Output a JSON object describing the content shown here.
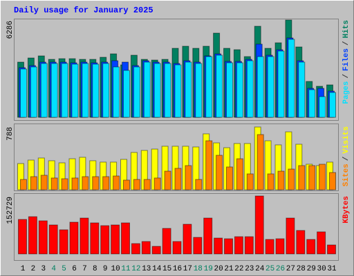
{
  "chart_data": [
    {
      "type": "bar",
      "title": "Daily usage for January 2025",
      "ylim": [
        0,
        6286
      ],
      "yticks": [
        6286
      ],
      "legend_separator": "/",
      "series": [
        {
          "name": "Hits",
          "color": "#008060",
          "values": [
            3566,
            3834,
            3968,
            3745,
            3789,
            3789,
            3745,
            3745,
            3879,
            4101,
            3388,
            4012,
            3745,
            3700,
            3745,
            4458,
            4592,
            4458,
            4592,
            5439,
            4458,
            4369,
            3923,
            5884,
            4458,
            4815,
            6286,
            4547,
            2318,
            2006,
            2095
          ]
        },
        {
          "name": "Files",
          "color": "#0040ff",
          "values": [
            3210,
            3343,
            3566,
            3566,
            3566,
            3522,
            3566,
            3522,
            3566,
            3656,
            3566,
            3343,
            3656,
            3566,
            3566,
            3477,
            3656,
            3566,
            3968,
            4101,
            3611,
            3611,
            3745,
            4726,
            4012,
            4369,
            5127,
            3656,
            1872,
            1872,
            1694
          ]
        },
        {
          "name": "Pages",
          "color": "#00e0ff",
          "values": [
            3121,
            3254,
            3477,
            3477,
            3477,
            3433,
            3477,
            3433,
            3477,
            3254,
            3031,
            3254,
            3566,
            3477,
            3477,
            3388,
            3566,
            3477,
            3923,
            4012,
            3522,
            3522,
            3656,
            3923,
            3923,
            4280,
            5038,
            3566,
            1783,
            1337,
            1605
          ]
        }
      ]
    },
    {
      "type": "bar",
      "ylim": [
        0,
        788
      ],
      "yticks": [
        788
      ],
      "legend_separator": "/",
      "series": [
        {
          "name": "Visits",
          "color": "#ffff00",
          "values": [
            325,
            368,
            394,
            360,
            334,
            385,
            403,
            360,
            343,
            343,
            377,
            463,
            488,
            505,
            540,
            540,
            540,
            531,
            694,
            582,
            522,
            574,
            574,
            779,
            608,
            557,
            719,
            565,
            317,
            300,
            343
          ]
        },
        {
          "name": "Sites",
          "color": "#ff8000",
          "values": [
            128,
            163,
            180,
            146,
            137,
            146,
            163,
            163,
            163,
            171,
            120,
            128,
            128,
            146,
            231,
            266,
            300,
            128,
            608,
            428,
            283,
            385,
            197,
            685,
            197,
            231,
            257,
            300,
            300,
            317,
            214
          ]
        }
      ]
    },
    {
      "type": "bar",
      "ylim": [
        0,
        152729
      ],
      "yticks": [
        152729
      ],
      "categories": [
        "1",
        "2",
        "3",
        "4",
        "5",
        "6",
        "7",
        "8",
        "9",
        "10",
        "11",
        "12",
        "13",
        "14",
        "15",
        "16",
        "17",
        "18",
        "19",
        "20",
        "21",
        "22",
        "23",
        "24",
        "25",
        "26",
        "27",
        "28",
        "29",
        "30",
        "31"
      ],
      "category_colors": [
        "#000000",
        "#000000",
        "#000000",
        "#008060",
        "#008060",
        "#000000",
        "#000000",
        "#000000",
        "#000000",
        "#000000",
        "#008060",
        "#008060",
        "#000000",
        "#000000",
        "#000000",
        "#000000",
        "#000000",
        "#008060",
        "#008060",
        "#000000",
        "#000000",
        "#000000",
        "#000000",
        "#000000",
        "#008060",
        "#008060",
        "#000000",
        "#000000",
        "#000000",
        "#000000",
        "#000000"
      ],
      "series": [
        {
          "name": "KBytes",
          "color": "#ff0000",
          "values": [
            90900,
            98172,
            87264,
            76356,
            63630,
            83628,
            94536,
            81810,
            74538,
            76356,
            81810,
            27270,
            32724,
            19998,
            67266,
            32724,
            78174,
            43632,
            94536,
            41814,
            39996,
            45450,
            45450,
            152729,
            38178,
            39996,
            94536,
            61812,
            38178,
            58176,
            23634
          ]
        }
      ]
    }
  ]
}
